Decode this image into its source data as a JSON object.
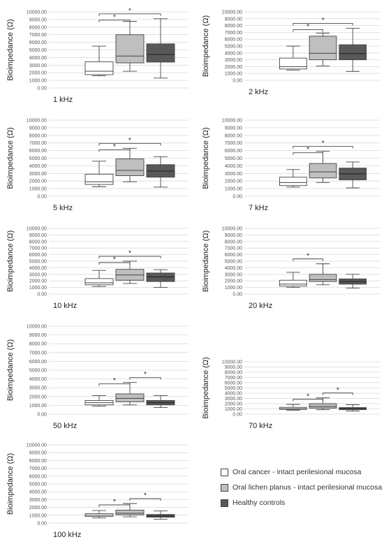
{
  "y_axis_label": "Bioimpedance (Ω)",
  "y_ticks": [
    "0.00",
    "1000.00",
    "2000.00",
    "3000.00",
    "4000.00",
    "5000.00",
    "6000.00",
    "7000.00",
    "8000.00",
    "9000.00",
    "10000.00"
  ],
  "legend": [
    {
      "label": "Oral cancer - intact perilesional mucosa",
      "color": "#ffffff"
    },
    {
      "label": "Oral lichen planus - intact perilesional mucosa",
      "color": "#bfbfbf"
    },
    {
      "label": "Healthy controls",
      "color": "#595959"
    }
  ],
  "chart_data": [
    {
      "type": "box",
      "frequency": "1 kHz",
      "ylim": [
        0,
        10000
      ],
      "boxes": [
        {
          "min": 1600,
          "q1": 1750,
          "median": 2200,
          "q3": 3450,
          "max": 5500
        },
        {
          "min": 2200,
          "q1": 3300,
          "median": 4200,
          "q3": 7000,
          "max": 8750
        },
        {
          "min": 1300,
          "q1": 3400,
          "median": 4400,
          "q3": 5800,
          "max": 9100
        }
      ],
      "significance": [
        {
          "from": 1,
          "to": 2,
          "label": "*"
        },
        {
          "from": 1,
          "to": 3,
          "label": "*"
        }
      ]
    },
    {
      "type": "box",
      "frequency": "2 kHz",
      "ylim": [
        0,
        10000
      ],
      "boxes": [
        {
          "min": 1500,
          "q1": 1650,
          "median": 2000,
          "q3": 3250,
          "max": 5000
        },
        {
          "min": 2100,
          "q1": 3000,
          "median": 3950,
          "q3": 6450,
          "max": 6900
        },
        {
          "min": 1300,
          "q1": 3000,
          "median": 3900,
          "q3": 5200,
          "max": 7600
        }
      ],
      "significance": [
        {
          "from": 1,
          "to": 2,
          "label": "*"
        },
        {
          "from": 1,
          "to": 3,
          "label": "*"
        }
      ]
    },
    {
      "type": "box",
      "frequency": "5 kHz",
      "ylim": [
        0,
        10000
      ],
      "boxes": [
        {
          "min": 1250,
          "q1": 1550,
          "median": 1900,
          "q3": 2900,
          "max": 4600
        },
        {
          "min": 1900,
          "q1": 2700,
          "median": 3400,
          "q3": 4900,
          "max": 6300
        },
        {
          "min": 1200,
          "q1": 2500,
          "median": 3300,
          "q3": 4150,
          "max": 5200
        }
      ],
      "significance": [
        {
          "from": 1,
          "to": 2,
          "label": "*"
        },
        {
          "from": 1,
          "to": 3,
          "label": "*"
        }
      ]
    },
    {
      "type": "box",
      "frequency": "7 kHz",
      "ylim": [
        0,
        10000
      ],
      "boxes": [
        {
          "min": 1200,
          "q1": 1400,
          "median": 1800,
          "q3": 2500,
          "max": 3500
        },
        {
          "min": 1800,
          "q1": 2400,
          "median": 3200,
          "q3": 4300,
          "max": 5900
        },
        {
          "min": 1100,
          "q1": 2150,
          "median": 2950,
          "q3": 3700,
          "max": 4500
        }
      ],
      "significance": [
        {
          "from": 1,
          "to": 2,
          "label": "*"
        },
        {
          "from": 1,
          "to": 3,
          "label": "*"
        }
      ]
    },
    {
      "type": "box",
      "frequency": "10 kHz",
      "ylim": [
        0,
        10000
      ],
      "boxes": [
        {
          "min": 1150,
          "q1": 1400,
          "median": 1700,
          "q3": 2350,
          "max": 3600
        },
        {
          "min": 1600,
          "q1": 2100,
          "median": 2900,
          "q3": 3750,
          "max": 5000
        },
        {
          "min": 1000,
          "q1": 1900,
          "median": 2600,
          "q3": 3200,
          "max": 3700
        }
      ],
      "significance": [
        {
          "from": 1,
          "to": 2,
          "label": "*"
        },
        {
          "from": 1,
          "to": 3,
          "label": "*"
        }
      ]
    },
    {
      "type": "box",
      "frequency": "20 kHz",
      "ylim": [
        0,
        10000
      ],
      "boxes": [
        {
          "min": 1000,
          "q1": 1200,
          "median": 1500,
          "q3": 2100,
          "max": 3300
        },
        {
          "min": 1400,
          "q1": 1900,
          "median": 2200,
          "q3": 3000,
          "max": 4600
        },
        {
          "min": 900,
          "q1": 1500,
          "median": 1900,
          "q3": 2300,
          "max": 3000
        }
      ],
      "significance": [
        {
          "from": 1,
          "to": 2,
          "label": "*"
        }
      ]
    },
    {
      "type": "box",
      "frequency": "50 kHz",
      "ylim": [
        0,
        10000
      ],
      "boxes": [
        {
          "min": 900,
          "q1": 1050,
          "median": 1300,
          "q3": 1550,
          "max": 2100
        },
        {
          "min": 1050,
          "q1": 1400,
          "median": 1800,
          "q3": 2300,
          "max": 3600
        },
        {
          "min": 750,
          "q1": 1050,
          "median": 1300,
          "q3": 1550,
          "max": 2100
        }
      ],
      "significance": [
        {
          "from": 1,
          "to": 2,
          "label": "*"
        },
        {
          "from": 2,
          "to": 3,
          "label": "*"
        }
      ]
    },
    {
      "type": "box",
      "frequency": "70 kHz",
      "ylim": [
        0,
        10000
      ],
      "boxes": [
        {
          "min": 750,
          "q1": 900,
          "median": 1050,
          "q3": 1300,
          "max": 1850
        },
        {
          "min": 850,
          "q1": 1150,
          "median": 1450,
          "q3": 2000,
          "max": 3100
        },
        {
          "min": 600,
          "q1": 850,
          "median": 1050,
          "q3": 1250,
          "max": 1800
        }
      ],
      "significance": [
        {
          "from": 1,
          "to": 2,
          "label": "*"
        },
        {
          "from": 2,
          "to": 3,
          "label": "*"
        }
      ]
    },
    {
      "type": "box",
      "frequency": "100 kHz",
      "ylim": [
        0,
        10000
      ],
      "boxes": [
        {
          "min": 650,
          "q1": 850,
          "median": 1000,
          "q3": 1200,
          "max": 1600
        },
        {
          "min": 800,
          "q1": 1050,
          "median": 1250,
          "q3": 1650,
          "max": 2500
        },
        {
          "min": 500,
          "q1": 750,
          "median": 900,
          "q3": 1100,
          "max": 1550
        }
      ],
      "significance": [
        {
          "from": 1,
          "to": 2,
          "label": "*"
        },
        {
          "from": 2,
          "to": 3,
          "label": "*"
        }
      ]
    }
  ]
}
